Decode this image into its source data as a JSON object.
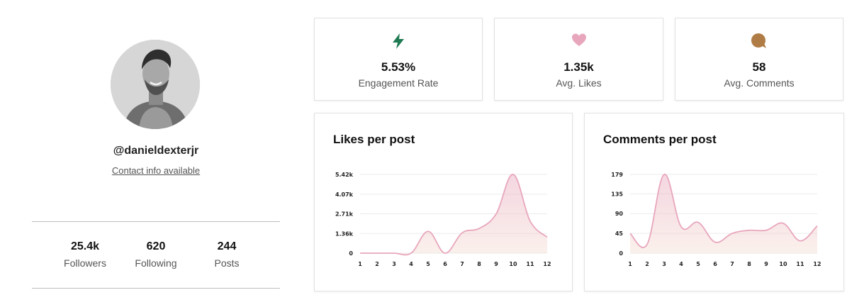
{
  "profile": {
    "handle": "@danieldexterjr",
    "contact_link": "Contact info available",
    "stats": [
      {
        "value": "25.4k",
        "label": "Followers"
      },
      {
        "value": "620",
        "label": "Following"
      },
      {
        "value": "244",
        "label": "Posts"
      }
    ]
  },
  "metrics": [
    {
      "icon": "lightning-icon",
      "value": "5.53%",
      "label": "Engagement Rate",
      "color": "#1f7a52"
    },
    {
      "icon": "heart-icon",
      "value": "1.35k",
      "label": "Avg. Likes",
      "color": "#e8a6bd"
    },
    {
      "icon": "comment-icon",
      "value": "58",
      "label": "Avg. Comments",
      "color": "#b07c45"
    }
  ],
  "chart_data": [
    {
      "type": "area",
      "title": "Likes per post",
      "x": [
        1,
        2,
        3,
        4,
        5,
        6,
        7,
        8,
        9,
        10,
        11,
        12
      ],
      "y": [
        0,
        0,
        0,
        0,
        1500,
        0,
        1400,
        1700,
        2700,
        5420,
        2200,
        1100
      ],
      "y_ticks": [
        "0",
        "1.36k",
        "2.71k",
        "4.07k",
        "5.42k"
      ],
      "y_tick_values": [
        0,
        1355,
        2710,
        4065,
        5420
      ],
      "ylim": [
        0,
        5420
      ],
      "grid": true,
      "color": "#e8a6bd"
    },
    {
      "type": "area",
      "title": "Comments per post",
      "x": [
        1,
        2,
        3,
        4,
        5,
        6,
        7,
        8,
        9,
        10,
        11,
        12
      ],
      "y": [
        45,
        20,
        179,
        60,
        70,
        25,
        45,
        52,
        52,
        68,
        28,
        62
      ],
      "y_ticks": [
        "0",
        "45",
        "90",
        "135",
        "179"
      ],
      "y_tick_values": [
        0,
        45,
        90,
        135,
        179
      ],
      "ylim": [
        0,
        179
      ],
      "grid": true,
      "color": "#e8a6bd"
    }
  ]
}
